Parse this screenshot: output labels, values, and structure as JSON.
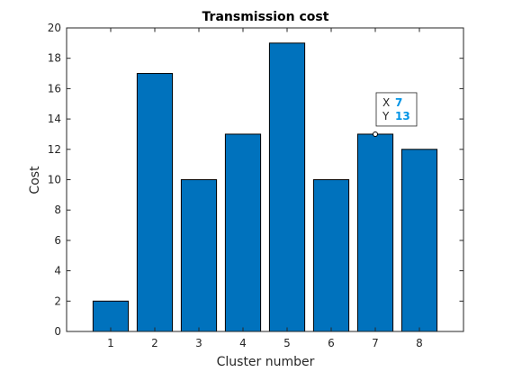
{
  "chart_data": {
    "type": "bar",
    "title": "Transmission cost",
    "xlabel": "Cluster number",
    "ylabel": "Cost",
    "categories": [
      "1",
      "2",
      "3",
      "4",
      "5",
      "6",
      "7",
      "8"
    ],
    "x": [
      1,
      2,
      3,
      4,
      5,
      6,
      7,
      8
    ],
    "values": [
      2,
      17,
      10,
      13,
      19,
      10,
      13,
      12
    ],
    "xlim": [
      0,
      9
    ],
    "ylim": [
      0,
      20
    ],
    "yticks": [
      0,
      2,
      4,
      6,
      8,
      10,
      12,
      14,
      16,
      18,
      20
    ],
    "grid": false,
    "bar_color": "#0072BD",
    "datatip": {
      "x_key": "X",
      "y_key": "Y",
      "x_value": "7",
      "y_value": "13",
      "at_x": 7,
      "at_y": 13,
      "value_color": "#0094E6"
    }
  }
}
